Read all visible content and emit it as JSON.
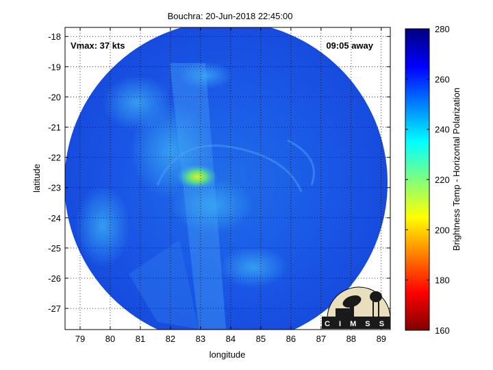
{
  "chart_data": {
    "type": "heatmap",
    "title": "Bouchra: 20-Jun-2018 22:45:00",
    "xlabel": "longitude",
    "ylabel": "latitude",
    "xlim": [
      78.5,
      89.3
    ],
    "ylim": [
      -27.7,
      -17.7
    ],
    "xticks": [
      "79",
      "80",
      "81",
      "82",
      "83",
      "84",
      "85",
      "86",
      "87",
      "88",
      "89"
    ],
    "yticks": [
      "-18",
      "-19",
      "-20",
      "-21",
      "-22",
      "-23",
      "-24",
      "-25",
      "-26",
      "-27"
    ],
    "grid": true,
    "annotations": {
      "left": "Vmax: 37 kts",
      "right": "09:05 away"
    },
    "colorbar": {
      "label": "Brightness Temp - Horizontal Polarization",
      "ticks": [
        "160",
        "180",
        "200",
        "220",
        "240",
        "260",
        "280"
      ],
      "min": 160,
      "max": 280
    },
    "swath_center": {
      "lon": 83.9,
      "lat": -22.8
    },
    "coldest_region": {
      "lon": 82.7,
      "lat": -22.6,
      "value": 205
    },
    "logo": "CIMSS"
  }
}
